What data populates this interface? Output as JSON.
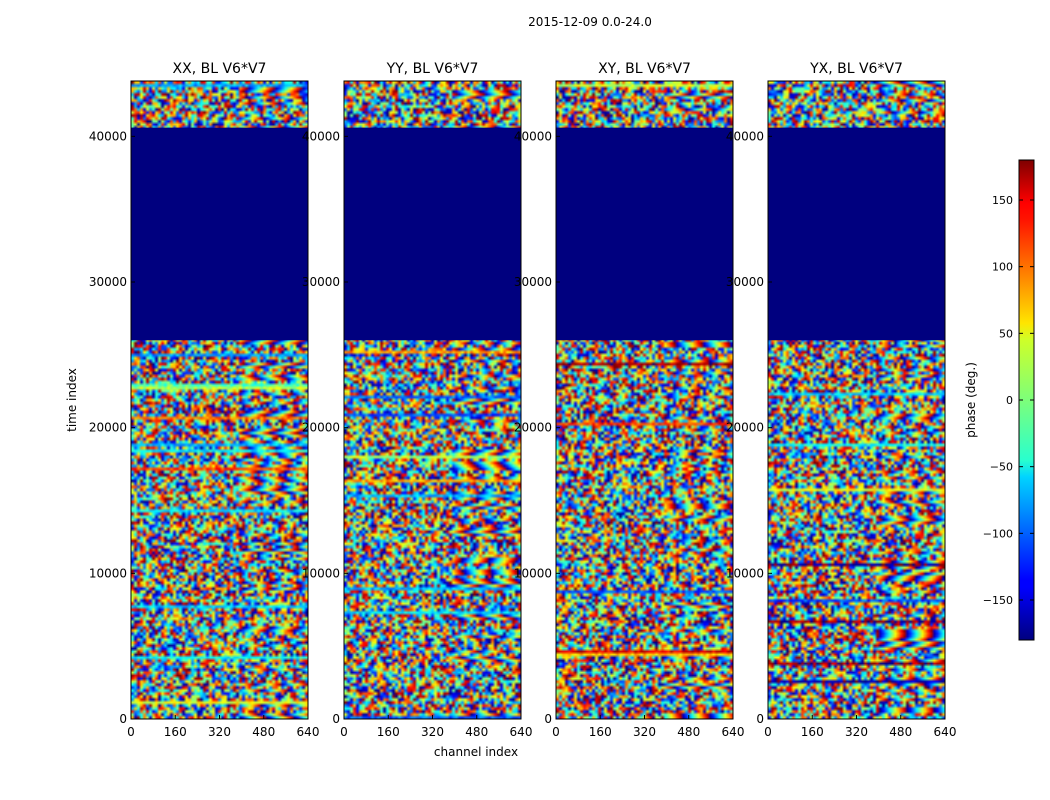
{
  "chart_data": {
    "type": "heatmap",
    "title": "2015-12-09 0.0-24.0",
    "xlabel": "channel index",
    "ylabel": "time index",
    "xlim": [
      0,
      640
    ],
    "ylim": [
      0,
      43800
    ],
    "xticks": [
      "0",
      "160",
      "320",
      "480",
      "640"
    ],
    "yticks": [
      "0",
      "10000",
      "20000",
      "30000",
      "40000"
    ],
    "xtick_values": [
      0,
      160,
      320,
      480,
      640
    ],
    "ytick_values": [
      0,
      10000,
      20000,
      30000,
      40000
    ],
    "panels": [
      {
        "title": "XX, BL V6*V7",
        "flagged_range": [
          26000,
          40600
        ]
      },
      {
        "title": "YY, BL V6*V7",
        "flagged_range": [
          26000,
          40600
        ]
      },
      {
        "title": "XY, BL V6*V7",
        "flagged_range": [
          26000,
          40600
        ]
      },
      {
        "title": "YX, BL V6*V7",
        "flagged_range": [
          26000,
          40600
        ]
      }
    ],
    "colorbar": {
      "label": "phase (deg.)",
      "range": [
        -180,
        180
      ],
      "ticks": [
        "150",
        "100",
        "50",
        "0",
        "−50",
        "−100",
        "−150"
      ],
      "tick_values": [
        150,
        100,
        50,
        0,
        -50,
        -100,
        -150
      ],
      "colormap": "jet"
    }
  }
}
